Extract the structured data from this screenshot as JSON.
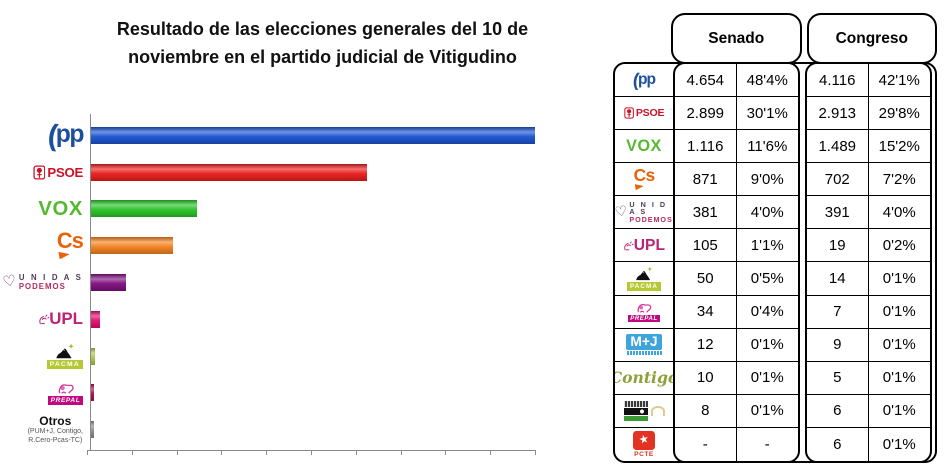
{
  "chart": {
    "title_line1": "Resultado de las elecciones generales del 10 de",
    "title_line2": "noviembre en el partido judicial de Vitigudino"
  },
  "chart_data": {
    "type": "bar",
    "orientation": "horizontal",
    "title": "Resultado de las elecciones generales del 10 de noviembre en el partido judicial de Vitigudino",
    "categories": [
      "PP",
      "PSOE",
      "VOX",
      "Cs",
      "UNIDAS PODEMOS",
      "UPL",
      "PACMA",
      "PREPAL",
      "Otros (PUM+J, Contigo, R.Cero-Pcas-TC)"
    ],
    "values": [
      4654,
      2899,
      1116,
      871,
      381,
      105,
      50,
      34,
      30
    ],
    "value_unit": "votos Senado",
    "xlabel": "",
    "ylabel": "",
    "xlim": [
      0,
      4654
    ],
    "tick_count": 11,
    "grid": false,
    "legend": false,
    "bar_colors": [
      "#1a53d1",
      "#ec1b1b",
      "#27c427",
      "#f5821f",
      "#800e80",
      "#e60d6f",
      "#a9c84c",
      "#a60f4b",
      "#8c8c8c"
    ]
  },
  "parties": {
    "pp": {
      "logo_arc": "(",
      "logo_text": "pp"
    },
    "psoe": {
      "logo_text": "PSOE"
    },
    "vox": {
      "logo_text": "VOX"
    },
    "cs": {
      "logo_text": "Cs"
    },
    "up": {
      "heart_glyph": "♡",
      "line1": "U N I D A S",
      "line2": "PODEMOS"
    },
    "upl": {
      "logo_text": "UPL"
    },
    "pacma": {
      "logo_text": "PACMA"
    },
    "prepal": {
      "logo_text": "PREPAL"
    },
    "mj": {
      "logo_text": "M+J"
    },
    "contigo": {
      "logo_text": "Contigo"
    },
    "pcte": {
      "star_glyph": "★",
      "logo_text": "PCTE"
    },
    "otros": {
      "label": "Otros",
      "sub1": "(PUM+J, Contigo,",
      "sub2": "R.Cero-Pcas-TC)"
    }
  },
  "table": {
    "headers": [
      "Senado",
      "Congreso"
    ],
    "rows": [
      {
        "party": "pp",
        "senado_votes": "4.654",
        "senado_pct": "48'4%",
        "congreso_votes": "4.116",
        "congreso_pct": "42'1%"
      },
      {
        "party": "psoe",
        "senado_votes": "2.899",
        "senado_pct": "30'1%",
        "congreso_votes": "2.913",
        "congreso_pct": "29'8%"
      },
      {
        "party": "vox",
        "senado_votes": "1.116",
        "senado_pct": "11'6%",
        "congreso_votes": "1.489",
        "congreso_pct": "15'2%"
      },
      {
        "party": "cs",
        "senado_votes": "871",
        "senado_pct": "9'0%",
        "congreso_votes": "702",
        "congreso_pct": "7'2%"
      },
      {
        "party": "up",
        "senado_votes": "381",
        "senado_pct": "4'0%",
        "congreso_votes": "391",
        "congreso_pct": "4'0%"
      },
      {
        "party": "upl",
        "senado_votes": "105",
        "senado_pct": "1'1%",
        "congreso_votes": "19",
        "congreso_pct": "0'2%"
      },
      {
        "party": "pacma",
        "senado_votes": "50",
        "senado_pct": "0'5%",
        "congreso_votes": "14",
        "congreso_pct": "0'1%"
      },
      {
        "party": "prepal",
        "senado_votes": "34",
        "senado_pct": "0'4%",
        "congreso_votes": "7",
        "congreso_pct": "0'1%"
      },
      {
        "party": "mj",
        "senado_votes": "12",
        "senado_pct": "0'1%",
        "congreso_votes": "9",
        "congreso_pct": "0'1%"
      },
      {
        "party": "contigo",
        "senado_votes": "10",
        "senado_pct": "0'1%",
        "congreso_votes": "5",
        "congreso_pct": "0'1%"
      },
      {
        "party": "rcero",
        "senado_votes": "8",
        "senado_pct": "0'1%",
        "congreso_votes": "6",
        "congreso_pct": "0'1%"
      },
      {
        "party": "pcte",
        "senado_votes": "-",
        "senado_pct": "-",
        "congreso_votes": "6",
        "congreso_pct": "0'1%"
      }
    ]
  },
  "colors": {
    "pp_blue": "#1c4f9e",
    "psoe_red": "#cd1126",
    "vox_green": "#57b82f",
    "cs_orange": "#ea6109",
    "up_purple": "#6b2d68",
    "upl_pink": "#bc2374",
    "pacma_green": "#b6c832",
    "prepal_magenta": "#c0087f",
    "mj_blue": "#3fa3dc",
    "contigo_olive": "#8da23b",
    "rcero_green": "#3a9b35",
    "pcte_red": "#e23222",
    "table_border": "#000000",
    "axis_gray": "#8a8a8a"
  }
}
